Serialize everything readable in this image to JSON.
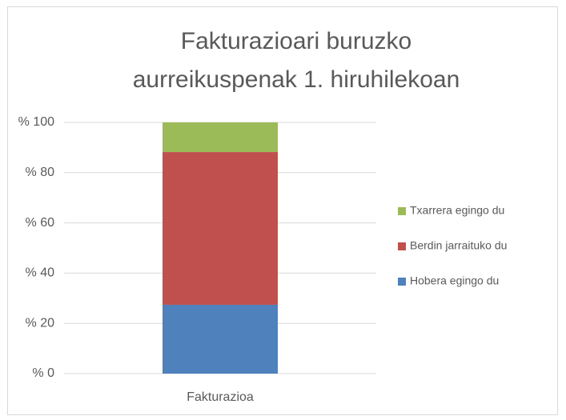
{
  "chart_data": {
    "type": "stacked_bar",
    "title": "Fakturazioari buruzko aurreikuspenak 1. hiruhilekoan",
    "categories": [
      "Fakturazioa"
    ],
    "series": [
      {
        "name": "Hobera egingo du",
        "color": "#4f81bd",
        "values": [
          27.4
        ]
      },
      {
        "name": "Berdin jarraituko du",
        "color": "#c0504d",
        "values": [
          60.8
        ]
      },
      {
        "name": "Txarrera egingo du",
        "color": "#9bbb59",
        "values": [
          11.8
        ]
      }
    ],
    "ylim": [
      0,
      100
    ],
    "yticks": [
      {
        "value": 0,
        "label": "% 0"
      },
      {
        "value": 20,
        "label": "% 20"
      },
      {
        "value": 40,
        "label": "% 40"
      },
      {
        "value": 60,
        "label": "% 60"
      },
      {
        "value": 80,
        "label": "% 80"
      },
      {
        "value": 100,
        "label": "% 100"
      }
    ],
    "grid": true,
    "legend": "right"
  }
}
